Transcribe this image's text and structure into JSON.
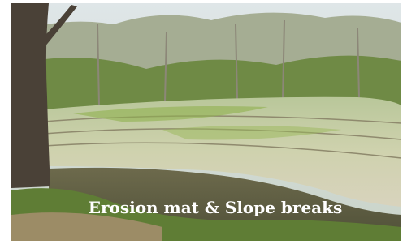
{
  "caption": "Erosion mat & Slope breaks"
}
